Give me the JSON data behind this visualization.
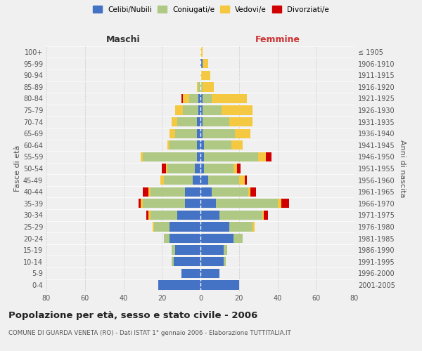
{
  "age_groups": [
    "0-4",
    "5-9",
    "10-14",
    "15-19",
    "20-24",
    "25-29",
    "30-34",
    "35-39",
    "40-44",
    "45-49",
    "50-54",
    "55-59",
    "60-64",
    "65-69",
    "70-74",
    "75-79",
    "80-84",
    "85-89",
    "90-94",
    "95-99",
    "100+"
  ],
  "birth_years": [
    "2001-2005",
    "1996-2000",
    "1991-1995",
    "1986-1990",
    "1981-1985",
    "1976-1980",
    "1971-1975",
    "1966-1970",
    "1961-1965",
    "1956-1960",
    "1951-1955",
    "1946-1950",
    "1941-1945",
    "1936-1940",
    "1931-1935",
    "1926-1930",
    "1921-1925",
    "1916-1920",
    "1911-1915",
    "1906-1910",
    "≤ 1905"
  ],
  "maschi_celibe": [
    22,
    10,
    14,
    13,
    16,
    16,
    12,
    8,
    8,
    4,
    3,
    2,
    2,
    2,
    2,
    1,
    1,
    0,
    0,
    0,
    0
  ],
  "maschi_coniugato": [
    0,
    0,
    1,
    2,
    3,
    8,
    14,
    22,
    18,
    15,
    14,
    28,
    14,
    11,
    10,
    8,
    5,
    1,
    0,
    0,
    0
  ],
  "maschi_vedovo": [
    0,
    0,
    0,
    0,
    0,
    1,
    1,
    1,
    1,
    2,
    1,
    1,
    1,
    3,
    3,
    4,
    3,
    1,
    0,
    0,
    0
  ],
  "maschi_divorziato": [
    0,
    0,
    0,
    0,
    0,
    0,
    1,
    1,
    3,
    0,
    2,
    0,
    0,
    0,
    0,
    0,
    1,
    0,
    0,
    0,
    0
  ],
  "femmine_celibe": [
    20,
    10,
    12,
    12,
    17,
    15,
    10,
    8,
    6,
    4,
    2,
    2,
    2,
    1,
    1,
    1,
    1,
    0,
    0,
    1,
    0
  ],
  "femmine_coniugata": [
    0,
    0,
    1,
    2,
    5,
    12,
    22,
    32,
    19,
    16,
    15,
    28,
    14,
    17,
    14,
    10,
    5,
    1,
    0,
    0,
    0
  ],
  "femmine_vedova": [
    0,
    0,
    0,
    0,
    0,
    1,
    1,
    2,
    1,
    3,
    2,
    4,
    6,
    8,
    12,
    16,
    18,
    6,
    5,
    3,
    1
  ],
  "femmine_divorziata": [
    0,
    0,
    0,
    0,
    0,
    0,
    2,
    4,
    3,
    1,
    2,
    3,
    0,
    0,
    0,
    0,
    0,
    0,
    0,
    0,
    0
  ],
  "colors": {
    "celibe": "#4472c4",
    "coniugato": "#afc985",
    "vedovo": "#f5c842",
    "divorziato": "#d00000"
  },
  "title": "Popolazione per età, sesso e stato civile - 2006",
  "subtitle": "COMUNE DI GUARDA VENETA (RO) - Dati ISTAT 1° gennaio 2006 - Elaborazione TUTTITALIA.IT",
  "xlabel_left": "Maschi",
  "xlabel_right": "Femmine",
  "ylabel_left": "Fasce di età",
  "ylabel_right": "Anni di nascita",
  "xlim": 80,
  "background_color": "#f0f0f0",
  "grid_color": "#cccccc"
}
